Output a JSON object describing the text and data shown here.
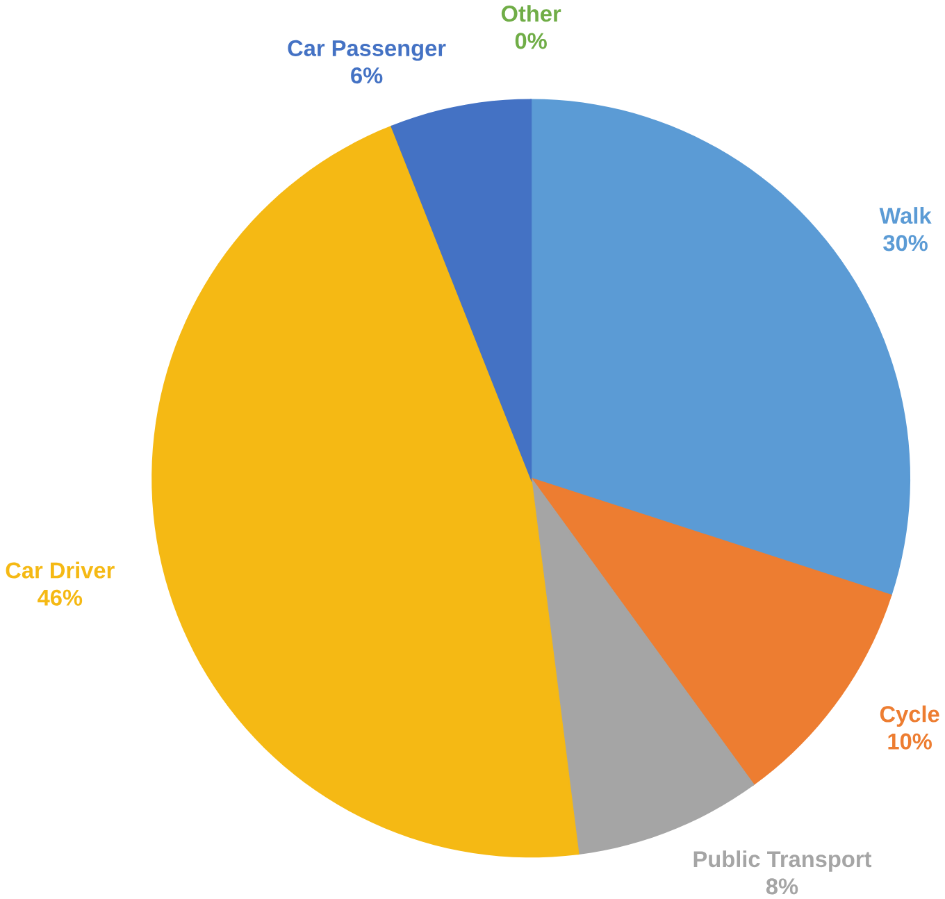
{
  "chart_data": {
    "type": "pie",
    "categories": [
      "Walk",
      "Cycle",
      "Public Transport",
      "Car Driver",
      "Car Passenger",
      "Other"
    ],
    "values": [
      30,
      10,
      8,
      46,
      6,
      0
    ],
    "value_labels": [
      "30%",
      "10%",
      "8%",
      "46%",
      "6%",
      "0%"
    ],
    "colors": [
      "#5b9bd5",
      "#ed7d31",
      "#a5a5a5",
      "#f5b914",
      "#4472c4",
      "#70ad47"
    ]
  }
}
